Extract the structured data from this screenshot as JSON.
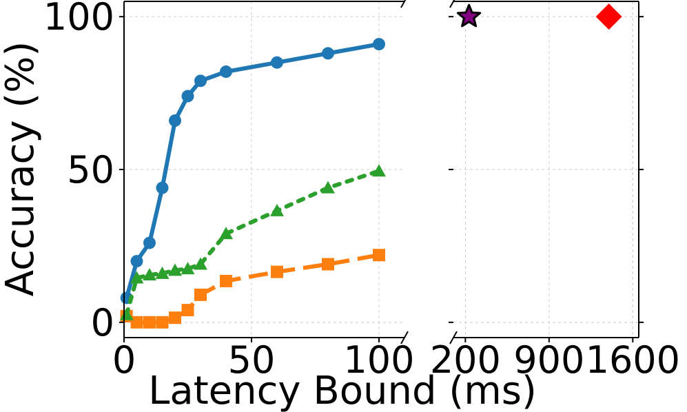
{
  "chart_data": {
    "type": "line",
    "xlabel": "Latency Bound (ms)",
    "ylabel": "Accuracy (%)",
    "ylim": [
      -5,
      105
    ],
    "grid": true,
    "left_panel": {
      "xlim": [
        0,
        110
      ],
      "xticks": [
        0,
        50,
        100
      ],
      "xtick_labels": [
        "0",
        "50",
        "100"
      ]
    },
    "right_panel": {
      "xlim": [
        100,
        1650
      ],
      "xticks": [
        200,
        900,
        1600
      ],
      "xtick_labels": [
        "200",
        "900",
        "1600"
      ]
    },
    "yticks": [
      0,
      50,
      100
    ],
    "ytick_labels": [
      "0",
      "50",
      "100"
    ],
    "series": [
      {
        "style": "solid",
        "marker": "circle",
        "color": "#1f77b4",
        "x": [
          1,
          5,
          10,
          15,
          20,
          25,
          30,
          40,
          60,
          80,
          100
        ],
        "y": [
          8,
          20,
          26,
          44,
          66,
          74,
          79,
          82,
          85,
          88,
          91
        ]
      },
      {
        "style": "dashed",
        "marker": "square",
        "color": "#ff7f0e",
        "x": [
          1,
          5,
          10,
          15,
          20,
          25,
          30,
          40,
          60,
          80,
          100
        ],
        "y": [
          2,
          0,
          0,
          0,
          1.5,
          4,
          9,
          13.5,
          16.5,
          19,
          22
        ]
      },
      {
        "style": "dotted",
        "marker": "triangle",
        "color": "#2ca02c",
        "x": [
          1,
          5,
          10,
          15,
          20,
          25,
          30,
          40,
          60,
          80,
          100
        ],
        "y": [
          2.5,
          14.5,
          15.5,
          16,
          17,
          17.5,
          19,
          29,
          36.5,
          44,
          49.5
        ]
      }
    ],
    "points": [
      {
        "marker": "star",
        "color": "#800080",
        "edge": "#000000",
        "x": 230,
        "y": 100
      },
      {
        "marker": "diamond",
        "color": "#ff0000",
        "x": 1400,
        "y": 100
      }
    ]
  }
}
